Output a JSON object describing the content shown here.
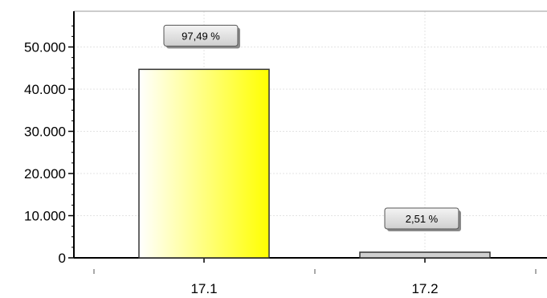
{
  "chart_data": {
    "type": "bar",
    "categories": [
      "17.1",
      "17.2"
    ],
    "values": [
      44700,
      1150
    ],
    "data_labels": [
      "97,49 %",
      "2,51 %"
    ],
    "y_tick_labels": [
      "0",
      "10.000",
      "20.000",
      "30.000",
      "40.000",
      "50.000"
    ],
    "y_ticks": [
      0,
      10000,
      20000,
      30000,
      40000,
      50000
    ],
    "ylim": [
      0,
      60000
    ],
    "grid": true,
    "bar_fill_start": "#ffffff",
    "bar_fill_end": "#ffff00",
    "bar_stroke": "#333333",
    "label_fill": "#dcdcdc"
  }
}
